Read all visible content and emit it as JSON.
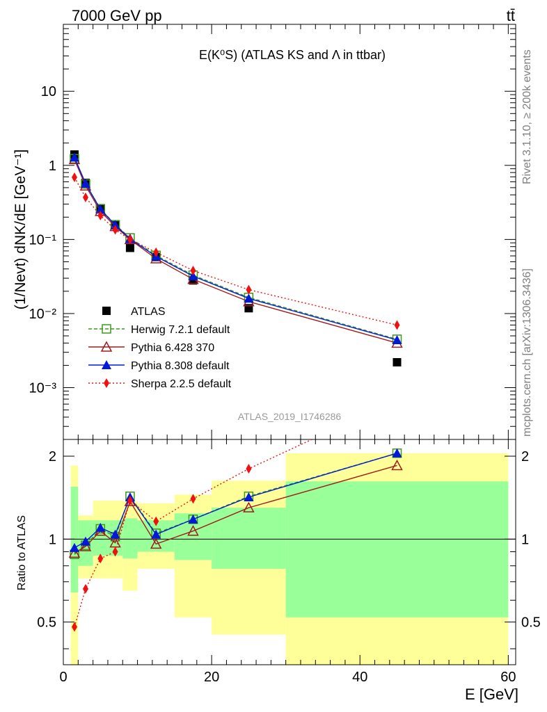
{
  "header": {
    "left": "7000 GeV pp",
    "right": "tt̄",
    "title": "E(K⁰S) (ATLAS KS and Λ in ttbar)",
    "analysis_id": "ATLAS_2019_I1746286"
  },
  "side_labels": {
    "rivet": "Rivet 3.1.10, ≥ 200k events",
    "mcplots": "mcplots.cern.ch [arXiv:1306.3436]"
  },
  "colors": {
    "ATLAS": "#000000",
    "Herwig": "#3a9a1a",
    "Pythia6": "#a01c1c",
    "Pythia8": "#0018d8",
    "Sherpa": "#f01010",
    "band_stat": "#99ff99",
    "band_syst": "#ffff99"
  },
  "chart_data": [
    {
      "type": "scatter",
      "panel": "main",
      "title": "E(K⁰S) (ATLAS KS and Λ in ttbar)",
      "ylabel": "(1/Nevt) dNK/dE [GeV⁻¹]",
      "yscale": "log",
      "ylim": [
        0.0002,
        80
      ],
      "xlim": [
        0,
        61
      ],
      "y_tick_labels": [
        "10⁻³",
        "10⁻²",
        "10⁻¹",
        "1",
        "10"
      ],
      "legend_position": "lower-left",
      "x": [
        1.5,
        3.0,
        5.0,
        7.0,
        9.0,
        12.5,
        17.5,
        25.0,
        45.0
      ],
      "series": [
        {
          "name": "ATLAS",
          "marker": "square-filled",
          "values": [
            1.4,
            0.58,
            0.26,
            0.155,
            0.077,
            0.058,
            0.028,
            0.0118,
            0.0022
          ]
        },
        {
          "name": "Herwig 7.2.1 default",
          "marker": "square-open",
          "line": "dashed",
          "values": [
            1.23,
            0.56,
            0.26,
            0.158,
            0.105,
            0.061,
            0.033,
            0.0165,
            0.0045
          ]
        },
        {
          "name": "Pythia 6.428 370",
          "marker": "triangle-open",
          "line": "solid",
          "values": [
            1.2,
            0.53,
            0.24,
            0.15,
            0.1,
            0.055,
            0.029,
            0.0145,
            0.004
          ]
        },
        {
          "name": "Pythia 8.308 default",
          "marker": "triangle-filled",
          "line": "solid",
          "values": [
            1.28,
            0.57,
            0.255,
            0.157,
            0.102,
            0.059,
            0.032,
            0.016,
            0.0044
          ]
        },
        {
          "name": "Sherpa 2.2.5 default",
          "marker": "diamond-filled",
          "line": "dotted",
          "values": [
            0.69,
            0.37,
            0.21,
            0.135,
            0.1,
            0.067,
            0.038,
            0.021,
            0.007
          ]
        }
      ]
    },
    {
      "type": "line",
      "panel": "ratio",
      "ylabel": "Ratio to ATLAS",
      "xlabel": "E [GeV]",
      "ylim": [
        0.35,
        2.3
      ],
      "xlim": [
        0,
        61
      ],
      "x_tick_labels": [
        "0",
        "20",
        "40",
        "60"
      ],
      "y_tick_labels": [
        "0.5",
        "1",
        "2"
      ],
      "x": [
        1.5,
        3.0,
        5.0,
        7.0,
        9.0,
        12.5,
        17.5,
        25.0,
        45.0
      ],
      "bins": [
        [
          1,
          2
        ],
        [
          2,
          4
        ],
        [
          4,
          6
        ],
        [
          6,
          8
        ],
        [
          8,
          10
        ],
        [
          10,
          15
        ],
        [
          15,
          20
        ],
        [
          20,
          30
        ],
        [
          30,
          60
        ]
      ],
      "stat_band": [
        [
          0.64,
          1.55
        ],
        [
          0.8,
          1.17
        ],
        [
          0.87,
          1.17
        ],
        [
          0.87,
          1.17
        ],
        [
          0.85,
          1.19
        ],
        [
          0.9,
          1.17
        ],
        [
          0.84,
          1.24
        ],
        [
          0.78,
          1.3
        ],
        [
          0.52,
          1.62
        ]
      ],
      "syst_band": [
        [
          0.35,
          1.85
        ],
        [
          0.72,
          1.22
        ],
        [
          0.72,
          1.38
        ],
        [
          0.72,
          1.38
        ],
        [
          0.65,
          1.37
        ],
        [
          0.78,
          1.35
        ],
        [
          0.52,
          1.45
        ],
        [
          0.45,
          1.63
        ],
        [
          0.35,
          2.05
        ]
      ],
      "series": [
        {
          "name": "Herwig 7.2.1 default",
          "values": [
            0.88,
            0.95,
            1.09,
            1.02,
            1.43,
            1.05,
            1.18,
            1.43,
            2.05
          ]
        },
        {
          "name": "Pythia 6.428 370",
          "values": [
            0.89,
            0.94,
            1.07,
            0.97,
            1.37,
            0.96,
            1.07,
            1.3,
            1.85
          ]
        },
        {
          "name": "Pythia 8.308 default",
          "values": [
            0.93,
            0.98,
            1.1,
            1.04,
            1.42,
            1.04,
            1.18,
            1.42,
            2.05
          ]
        },
        {
          "name": "Sherpa 2.2.5 default",
          "values": [
            0.48,
            0.66,
            0.85,
            0.9,
            1.38,
            1.16,
            1.4,
            1.8,
            3.2
          ]
        }
      ]
    }
  ]
}
